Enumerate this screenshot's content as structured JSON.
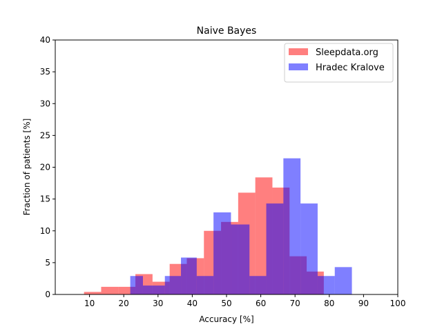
{
  "chart_data": {
    "type": "bar",
    "title": "Naive Bayes",
    "xlabel": "Accuracy [%]",
    "ylabel": "Fraction of patients [%]",
    "xlim": [
      0,
      100
    ],
    "ylim": [
      0,
      40
    ],
    "xticks": [
      10,
      20,
      30,
      40,
      50,
      60,
      70,
      80,
      90,
      100
    ],
    "yticks": [
      0,
      5,
      10,
      15,
      20,
      25,
      30,
      35,
      40
    ],
    "grid": false,
    "legend_position": "top-right",
    "series": [
      {
        "name": "Sleepdata.org",
        "color": "#ff0000",
        "opacity": 0.5,
        "bins": [
          {
            "x0": 8.4,
            "x1": 13.4,
            "value": 0.4
          },
          {
            "x0": 13.4,
            "x1": 18.4,
            "value": 1.2
          },
          {
            "x0": 18.4,
            "x1": 23.4,
            "value": 1.2
          },
          {
            "x0": 23.4,
            "x1": 28.4,
            "value": 3.2
          },
          {
            "x0": 28.4,
            "x1": 33.4,
            "value": 2.0
          },
          {
            "x0": 33.4,
            "x1": 38.4,
            "value": 4.8
          },
          {
            "x0": 38.4,
            "x1": 43.4,
            "value": 5.7
          },
          {
            "x0": 43.4,
            "x1": 48.4,
            "value": 10.0
          },
          {
            "x0": 48.4,
            "x1": 53.4,
            "value": 11.4
          },
          {
            "x0": 53.4,
            "x1": 58.4,
            "value": 16.0
          },
          {
            "x0": 58.4,
            "x1": 63.4,
            "value": 18.4
          },
          {
            "x0": 63.4,
            "x1": 68.4,
            "value": 16.8
          },
          {
            "x0": 68.4,
            "x1": 73.4,
            "value": 6.0
          },
          {
            "x0": 73.4,
            "x1": 78.4,
            "value": 3.6
          }
        ]
      },
      {
        "name": "Hradec Kralove",
        "color": "#0000ff",
        "opacity": 0.5,
        "bins": [
          {
            "x0": 21.9,
            "x1": 25.6,
            "value": 2.9
          },
          {
            "x0": 25.6,
            "x1": 32.0,
            "value": 1.4
          },
          {
            "x0": 32.0,
            "x1": 36.7,
            "value": 2.9
          },
          {
            "x0": 36.7,
            "x1": 41.3,
            "value": 5.8
          },
          {
            "x0": 41.3,
            "x1": 46.2,
            "value": 2.9
          },
          {
            "x0": 46.2,
            "x1": 51.3,
            "value": 12.9
          },
          {
            "x0": 51.3,
            "x1": 56.7,
            "value": 11.0
          },
          {
            "x0": 56.7,
            "x1": 61.6,
            "value": 2.9
          },
          {
            "x0": 61.6,
            "x1": 66.6,
            "value": 14.3
          },
          {
            "x0": 66.6,
            "x1": 71.6,
            "value": 21.4
          },
          {
            "x0": 71.6,
            "x1": 76.6,
            "value": 14.3
          },
          {
            "x0": 76.6,
            "x1": 81.6,
            "value": 2.9
          },
          {
            "x0": 81.6,
            "x1": 86.6,
            "value": 4.3
          }
        ]
      }
    ]
  }
}
